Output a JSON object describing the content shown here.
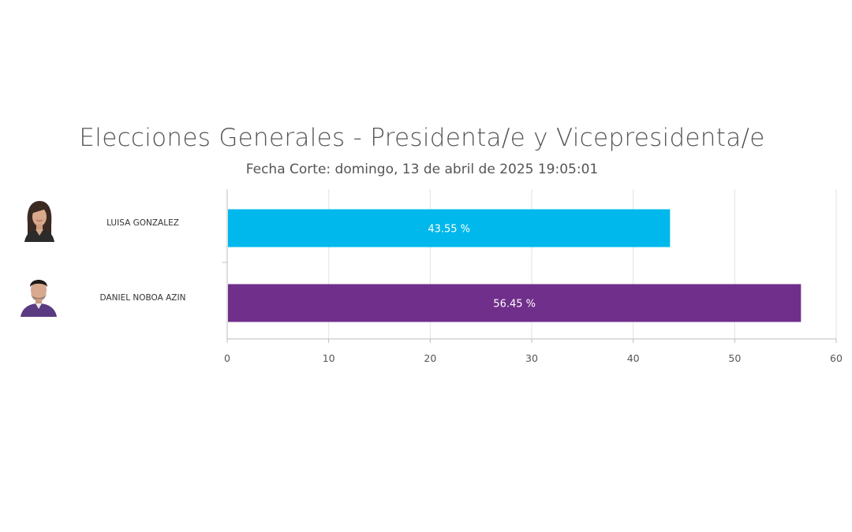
{
  "header": {
    "title": "Elecciones Generales - Presidenta/e y Vicepresidenta/e",
    "subtitle": "Fecha Corte: domingo, 13 de abril de 2025 19:05:01"
  },
  "candidates": [
    {
      "name": "LUISA GONZALEZ",
      "avatar_icon": "woman-portrait-icon"
    },
    {
      "name": "DANIEL NOBOA AZIN",
      "avatar_icon": "man-portrait-icon"
    }
  ],
  "chart_data": {
    "type": "bar",
    "orientation": "horizontal",
    "title": "Elecciones Generales - Presidenta/e y Vicepresidenta/e",
    "subtitle": "Fecha Corte: domingo, 13 de abril de 2025 19:05:01",
    "categories": [
      "LUISA GONZALEZ",
      "DANIEL NOBOA AZIN"
    ],
    "values": [
      43.55,
      56.45
    ],
    "data_labels": [
      "43.55 %",
      "56.45 %"
    ],
    "colors": [
      "#00b8eb",
      "#702f8a"
    ],
    "xlim": [
      0,
      60
    ],
    "xticks": [
      0,
      10,
      20,
      30,
      40,
      50,
      60
    ],
    "xlabel": "",
    "ylabel": "",
    "grid": true,
    "legend": "none"
  }
}
